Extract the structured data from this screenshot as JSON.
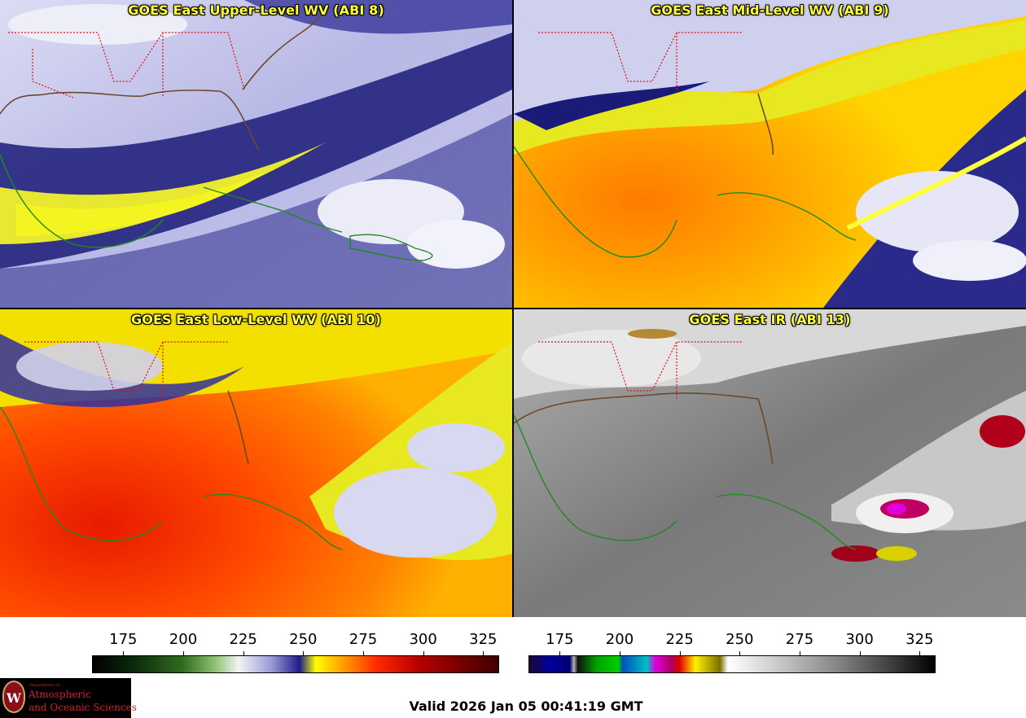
{
  "panels": [
    {
      "title": "GOES East Upper-Level WV (ABI 8)"
    },
    {
      "title": "GOES East Mid-Level WV (ABI 9)"
    },
    {
      "title": "GOES East Low-Level WV (ABI 10)"
    },
    {
      "title": "GOES East IR (ABI 13)"
    }
  ],
  "colorbar_wv": {
    "ticks": [
      "175",
      "200",
      "225",
      "250",
      "275",
      "300",
      "325"
    ],
    "range": [
      162,
      331
    ]
  },
  "colorbar_ir": {
    "ticks": [
      "175",
      "200",
      "225",
      "250",
      "275",
      "300",
      "325"
    ],
    "range": [
      162,
      331
    ]
  },
  "logo": {
    "dept": "Department of",
    "name_line1": "Atmospheric",
    "name_line2": "and Oceanic Sciences",
    "seal_letter": "W"
  },
  "valid_time": "Valid 2026 Jan 05 00:41:19 GMT",
  "colors": {
    "coast": "#1f8a1f",
    "state_borders": "#e01010",
    "title": "#ffff33"
  }
}
